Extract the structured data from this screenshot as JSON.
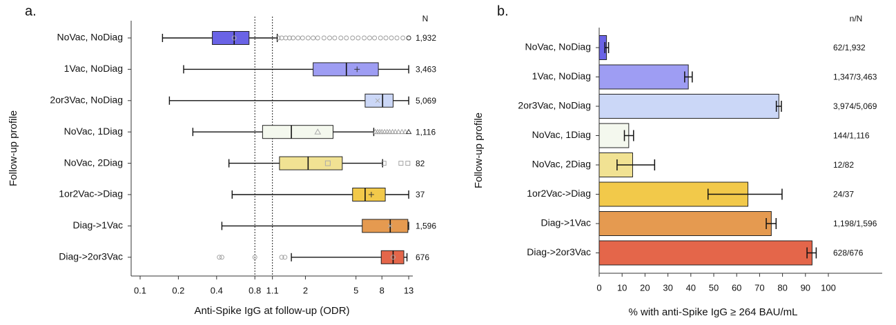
{
  "chart_data": [
    {
      "panel": "a.",
      "type": "boxplot",
      "xlabel": "Anti-Spike IgG at follow-up (ODR)",
      "ylabel": "Follow-up profile",
      "xscale": "log",
      "xlim": [
        0.085,
        14
      ],
      "xticks": [
        0.1,
        0.2,
        0.4,
        0.8,
        1.1,
        2,
        5,
        8,
        13
      ],
      "xtick_labels": [
        "0.1",
        "0.2",
        "0.4",
        "0.8",
        "1.1",
        "2",
        "5",
        "8",
        "13"
      ],
      "reference_lines": [
        0.8,
        1.1
      ],
      "n_header": "N",
      "categories": [
        "NoVac, NoDiag",
        "1Vac, NoDiag",
        "2or3Vac, NoDiag",
        "NoVac, 1Diag",
        "NoVac, 2Diag",
        "1or2Vac->Diag",
        "Diag->1Vac",
        "Diag->2or3Vac"
      ],
      "n_labels": [
        "1,932",
        "3,463",
        "5,069",
        "1,116",
        "82",
        "37",
        "1,596",
        "676"
      ],
      "colors": [
        "#6a63e6",
        "#9e9df3",
        "#cbd7f7",
        "#f4f8ee",
        "#f1e293",
        "#f2c94a",
        "#e59a50",
        "#e4664a"
      ],
      "mean_markers": [
        "o",
        "+",
        "x",
        "triangle",
        "square",
        "+",
        "x",
        "o"
      ],
      "boxes": [
        {
          "whisker_low": 0.15,
          "q1": 0.37,
          "median": 0.55,
          "q3": 0.72,
          "whisker_high": 1.2,
          "mean": 0.55,
          "outliers": [
            1.22,
            1.3,
            1.4,
            1.5,
            1.6,
            1.75,
            1.9,
            2.1,
            2.3,
            2.5,
            2.8,
            3.1,
            3.4,
            3.8,
            4.2,
            4.7,
            5.2,
            5.8,
            6.4,
            7.0,
            7.8,
            8.6,
            9.5,
            10.5,
            11.7,
            13.0
          ]
        },
        {
          "whisker_low": 0.22,
          "q1": 2.3,
          "median": 4.2,
          "q3": 7.5,
          "whisker_high": 13.0,
          "mean": 5.1,
          "outliers": []
        },
        {
          "whisker_low": 0.17,
          "q1": 5.9,
          "median": 8.1,
          "q3": 9.8,
          "whisker_high": 13.0,
          "mean": 7.4,
          "outliers": []
        },
        {
          "whisker_low": 0.26,
          "q1": 0.92,
          "median": 1.55,
          "q3": 3.3,
          "whisker_high": 6.9,
          "mean": 2.5,
          "outliers": [
            7.1,
            7.4,
            7.7,
            8.0,
            8.4,
            8.8,
            9.2,
            9.7,
            10.2,
            10.8,
            11.5,
            12.2,
            13.0
          ]
        },
        {
          "whisker_low": 0.5,
          "q1": 1.25,
          "median": 2.1,
          "q3": 3.9,
          "whisker_high": 8.1,
          "mean": 3.0,
          "outliers": [
            8.3,
            11.3,
            12.8
          ]
        },
        {
          "whisker_low": 0.53,
          "q1": 4.7,
          "median": 5.9,
          "q3": 8.5,
          "whisker_high": 13.0,
          "mean": 6.6,
          "outliers": []
        },
        {
          "whisker_low": 0.44,
          "q1": 5.6,
          "median": 9.3,
          "q3": 12.8,
          "whisker_high": 13.0,
          "mean": 9.3,
          "outliers": []
        },
        {
          "whisker_low": 1.55,
          "q1": 7.9,
          "median": 9.8,
          "q3": 11.9,
          "whisker_high": 12.6,
          "mean": 9.8,
          "outliers": [
            0.42,
            0.44,
            0.8,
            1.3,
            1.38
          ]
        }
      ]
    },
    {
      "panel": "b.",
      "type": "bar",
      "orientation": "horizontal",
      "xlabel": "% with anti-Spike IgG ≥ 264 BAU/mL",
      "ylabel": "Follow-up profile",
      "xlim": [
        0,
        100
      ],
      "xticks": [
        0,
        10,
        20,
        30,
        40,
        50,
        60,
        70,
        80,
        90,
        100
      ],
      "xtick_labels": [
        "0",
        "10",
        "20",
        "30",
        "40",
        "50",
        "60",
        "70",
        "80",
        "90",
        "100"
      ],
      "n_header": "n/N",
      "categories": [
        "NoVac, NoDiag",
        "1Vac, NoDiag",
        "2or3Vac, NoDiag",
        "NoVac, 1Diag",
        "NoVac, 2Diag",
        "1or2Vac->Diag",
        "Diag->1Vac",
        "Diag->2or3Vac"
      ],
      "values": [
        3.2,
        38.9,
        78.4,
        12.9,
        14.6,
        64.9,
        75.1,
        92.9
      ],
      "ci_low": [
        2.5,
        37.3,
        77.3,
        11.0,
        7.8,
        47.5,
        72.9,
        90.7
      ],
      "ci_high": [
        4.1,
        40.6,
        79.5,
        15.0,
        24.2,
        79.8,
        77.2,
        94.7
      ],
      "n_labels": [
        "62/1,932",
        "1,347/3,463",
        "3,974/5,069",
        "144/1,116",
        "12/82",
        "24/37",
        "1,198/1,596",
        "628/676"
      ],
      "colors": [
        "#6a63e6",
        "#9e9df3",
        "#cbd7f7",
        "#f4f8ee",
        "#f1e293",
        "#f2c94a",
        "#e59a50",
        "#e4664a"
      ]
    }
  ]
}
